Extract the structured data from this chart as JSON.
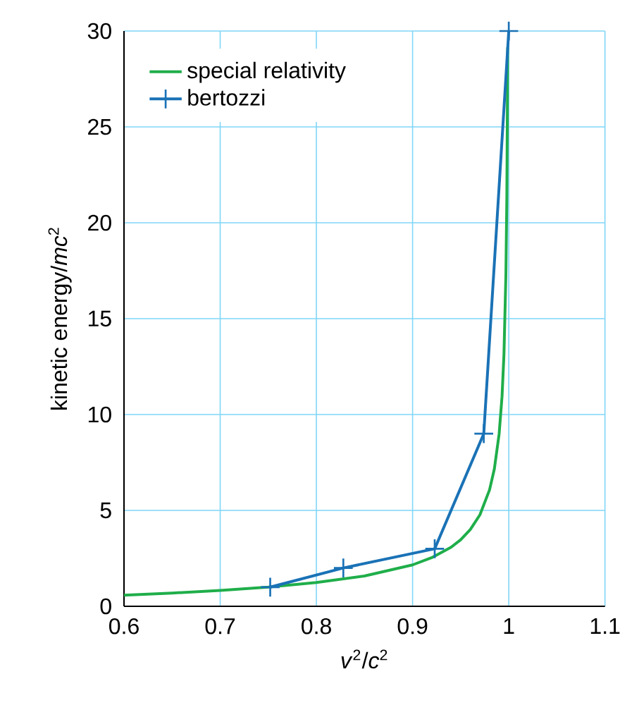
{
  "chart_data": {
    "type": "line",
    "xlabel": "*v*$^{2}$/*c*$^{2}$",
    "ylabel": "kinetic energy/*mc*$^{2}$",
    "xlim": [
      0.6,
      1.1
    ],
    "ylim": [
      0,
      30
    ],
    "xticks": [
      0.6,
      0.7,
      0.8,
      0.9,
      {
        "value": 1,
        "label": "1"
      },
      1.1
    ],
    "yticks": [
      0,
      5,
      10,
      15,
      20,
      25,
      30
    ],
    "grid": true,
    "legend": "top left",
    "series": [
      {
        "name": "special relativity",
        "color": "#1fae4a",
        "marker": "none",
        "x": [
          0.6,
          0.65,
          0.7,
          0.75,
          0.8,
          0.85,
          0.9,
          0.92,
          0.94,
          0.95,
          0.96,
          0.97,
          0.98,
          0.985,
          0.99,
          0.993,
          0.995,
          0.997,
          0.998,
          0.9989
        ],
        "values": [
          0.58,
          0.69,
          0.83,
          1.0,
          1.24,
          1.58,
          2.16,
          2.54,
          3.08,
          3.47,
          4.0,
          4.77,
          6.07,
          7.16,
          9.0,
          10.95,
          13.14,
          17.26,
          21.36,
          29.15
        ]
      },
      {
        "name": "bertozzi",
        "color": "#1a72b6",
        "marker": "cross",
        "x": [
          0.752,
          0.828,
          0.923,
          0.974,
          1.0
        ],
        "values": [
          1,
          2,
          3,
          9,
          30
        ]
      }
    ]
  }
}
